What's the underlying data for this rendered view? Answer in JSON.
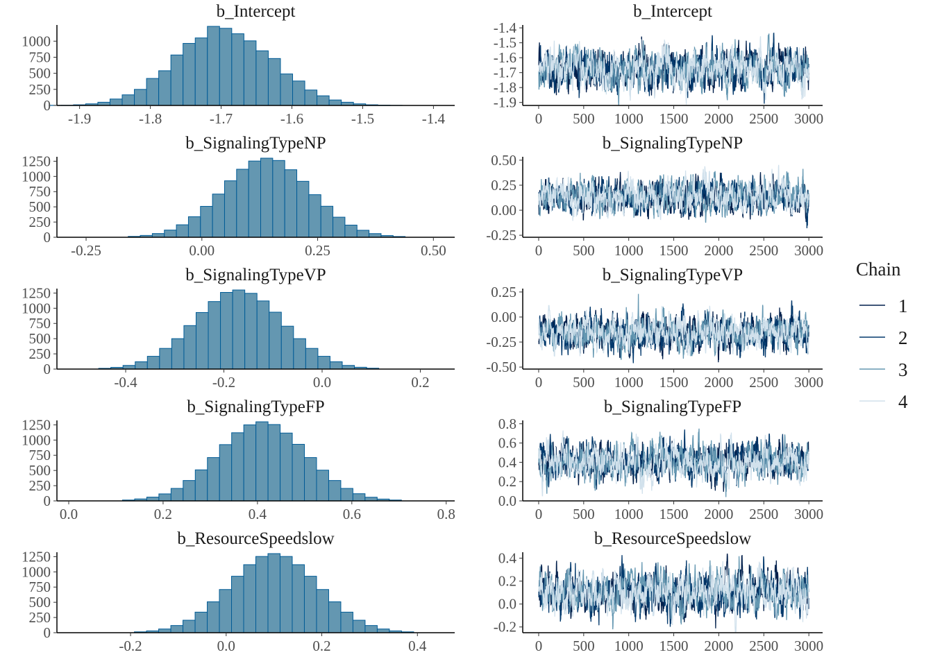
{
  "legend": {
    "title": "Chain",
    "position": "right",
    "entries": [
      {
        "label": "1",
        "color": "#011f4b"
      },
      {
        "label": "2",
        "color": "#03396c"
      },
      {
        "label": "3",
        "color": "#6497b1"
      },
      {
        "label": "4",
        "color": "#d1e1ec"
      }
    ]
  },
  "colors": {
    "hist_fill": "#6497b1",
    "hist_outline": "#005b96",
    "axis": "#000000"
  },
  "chart_data": [
    {
      "type": "bar",
      "kind": "histogram",
      "title": "b_Intercept",
      "xlim": [
        -1.932,
        -1.37
      ],
      "xticks": [
        -1.9,
        -1.8,
        -1.7,
        -1.6,
        -1.5,
        -1.4
      ],
      "xtick_labels": [
        "-1.9",
        "-1.8",
        "-1.7",
        "-1.6",
        "-1.5",
        "-1.4"
      ],
      "ylim": [
        0,
        1230
      ],
      "yticks": [
        0,
        250,
        500,
        750,
        1000
      ],
      "ytick_labels": [
        "0",
        "250",
        "500",
        "750",
        "1000"
      ],
      "bins": {
        "start": -1.943,
        "width": 0.0172,
        "counts": [
          2,
          3,
          10,
          25,
          50,
          100,
          165,
          250,
          420,
          540,
          785,
          965,
          1050,
          1230,
          1200,
          1115,
          1005,
          850,
          730,
          490,
          380,
          240,
          150,
          85,
          50,
          25,
          10,
          5,
          2
        ]
      }
    },
    {
      "type": "line",
      "kind": "trace",
      "title": "b_Intercept",
      "xlim": [
        -177,
        3153
      ],
      "xticks": [
        0,
        500,
        1000,
        1500,
        2000,
        2500,
        3000
      ],
      "xtick_labels": [
        "0",
        "500",
        "1000",
        "1500",
        "2000",
        "2500",
        "3000"
      ],
      "ylim": [
        -1.92,
        -1.39
      ],
      "yticks": [
        -1.9,
        -1.8,
        -1.7,
        -1.6,
        -1.5,
        -1.4
      ],
      "ytick_labels": [
        "-1.9",
        "-1.8",
        "-1.7",
        "-1.6",
        "-1.5",
        "-1.4"
      ],
      "iterations": 3000,
      "mean": -1.68,
      "sd": 0.07
    },
    {
      "type": "bar",
      "kind": "histogram",
      "title": "b_SignalingTypeNP",
      "xlim": [
        -0.313,
        0.546
      ],
      "xticks": [
        -0.25,
        0,
        0.25,
        0.5
      ],
      "xtick_labels": [
        "-0.25",
        "0.00",
        "0.25",
        "0.50"
      ],
      "ylim": [
        0,
        1300
      ],
      "yticks": [
        0,
        250,
        500,
        750,
        1000,
        1250
      ],
      "ytick_labels": [
        "0",
        "250",
        "500",
        "750",
        "1000",
        "1250"
      ],
      "bins": {
        "start": -0.159,
        "width": 0.026,
        "counts": [
          14,
          30,
          61,
          118,
          205,
          338,
          508,
          710,
          928,
          1118,
          1253,
          1300,
          1262,
          1110,
          920,
          700,
          510,
          330,
          200,
          115,
          60,
          28,
          12
        ]
      }
    },
    {
      "type": "line",
      "kind": "trace",
      "title": "b_SignalingTypeNP",
      "xlim": [
        -177,
        3153
      ],
      "xticks": [
        0,
        500,
        1000,
        1500,
        2000,
        2500,
        3000
      ],
      "xtick_labels": [
        "0",
        "500",
        "1000",
        "1500",
        "2000",
        "2500",
        "3000"
      ],
      "ylim": [
        -0.27,
        0.52
      ],
      "yticks": [
        -0.25,
        0,
        0.25,
        0.5
      ],
      "ytick_labels": [
        "-0.25",
        "0.00",
        "0.25",
        "0.50"
      ],
      "iterations": 3000,
      "mean": 0.14,
      "sd": 0.09
    },
    {
      "type": "bar",
      "kind": "histogram",
      "title": "b_SignalingTypeVP",
      "xlim": [
        -0.54,
        0.27
      ],
      "xticks": [
        -0.4,
        -0.2,
        0,
        0.2
      ],
      "xtick_labels": [
        "-0.4",
        "-0.2",
        "0.0",
        "0.2"
      ],
      "ylim": [
        0,
        1300
      ],
      "yticks": [
        0,
        250,
        500,
        750,
        1000,
        1250
      ],
      "ytick_labels": [
        "0",
        "250",
        "500",
        "750",
        "1000",
        "1250"
      ],
      "bins": {
        "start": -0.455,
        "width": 0.0248,
        "counts": [
          12,
          28,
          60,
          120,
          210,
          340,
          500,
          715,
          930,
          1110,
          1260,
          1300,
          1245,
          1120,
          935,
          705,
          500,
          340,
          210,
          120,
          60,
          30,
          14
        ]
      }
    },
    {
      "type": "line",
      "kind": "trace",
      "title": "b_SignalingTypeVP",
      "xlim": [
        -177,
        3153
      ],
      "xticks": [
        0,
        500,
        1000,
        1500,
        2000,
        2500,
        3000
      ],
      "xtick_labels": [
        "0",
        "500",
        "1000",
        "1500",
        "2000",
        "2500",
        "3000"
      ],
      "ylim": [
        -0.52,
        0.27
      ],
      "yticks": [
        -0.5,
        -0.25,
        0,
        0.25
      ],
      "ytick_labels": [
        "-0.50",
        "-0.25",
        "0.00",
        "0.25"
      ],
      "iterations": 3000,
      "mean": -0.16,
      "sd": 0.09
    },
    {
      "type": "bar",
      "kind": "histogram",
      "title": "b_SignalingTypeFP",
      "xlim": [
        -0.025,
        0.818
      ],
      "xticks": [
        0,
        0.2,
        0.4,
        0.6,
        0.8
      ],
      "xtick_labels": [
        "0.0",
        "0.2",
        "0.4",
        "0.6",
        "0.8"
      ],
      "ylim": [
        0,
        1300
      ],
      "yticks": [
        0,
        250,
        500,
        750,
        1000,
        1250
      ],
      "ytick_labels": [
        "0",
        "250",
        "500",
        "750",
        "1000",
        "1250"
      ],
      "bins": {
        "start": 0.114,
        "width": 0.0257,
        "counts": [
          14,
          32,
          62,
          115,
          205,
          335,
          510,
          712,
          925,
          1120,
          1250,
          1300,
          1255,
          1115,
          930,
          712,
          505,
          335,
          205,
          118,
          60,
          30,
          14
        ]
      }
    },
    {
      "type": "line",
      "kind": "trace",
      "title": "b_SignalingTypeFP",
      "xlim": [
        -177,
        3153
      ],
      "xticks": [
        0,
        500,
        1000,
        1500,
        2000,
        2500,
        3000
      ],
      "xtick_labels": [
        "0",
        "500",
        "1000",
        "1500",
        "2000",
        "2500",
        "3000"
      ],
      "ylim": [
        0,
        0.82
      ],
      "yticks": [
        0,
        0.2,
        0.4,
        0.6,
        0.8
      ],
      "ytick_labels": [
        "0.0",
        "0.2",
        "0.4",
        "0.6",
        "0.8"
      ],
      "iterations": 3000,
      "mean": 0.41,
      "sd": 0.1
    },
    {
      "type": "bar",
      "kind": "histogram",
      "title": "b_ResourceSpeedslow",
      "xlim": [
        -0.354,
        0.478
      ],
      "xticks": [
        -0.2,
        0,
        0.2,
        0.4
      ],
      "xtick_labels": [
        "-0.2",
        "0.0",
        "0.2",
        "0.4"
      ],
      "ylim": [
        0,
        1300
      ],
      "yticks": [
        0,
        250,
        500,
        750,
        1000,
        1250
      ],
      "ytick_labels": [
        "0",
        "250",
        "500",
        "750",
        "1000",
        "1250"
      ],
      "bins": {
        "start": -0.192,
        "width": 0.0254,
        "counts": [
          14,
          30,
          61,
          118,
          205,
          338,
          508,
          710,
          928,
          1118,
          1253,
          1300,
          1253,
          1118,
          928,
          710,
          508,
          338,
          205,
          118,
          61,
          30,
          14
        ]
      }
    },
    {
      "type": "line",
      "kind": "trace",
      "title": "b_ResourceSpeedslow",
      "xlim": [
        -177,
        3153
      ],
      "xticks": [
        0,
        500,
        1000,
        1500,
        2000,
        2500,
        3000
      ],
      "xtick_labels": [
        "0",
        "500",
        "1000",
        "1500",
        "2000",
        "2500",
        "3000"
      ],
      "ylim": [
        -0.25,
        0.44
      ],
      "yticks": [
        -0.2,
        0,
        0.2,
        0.4
      ],
      "ytick_labels": [
        "-0.2",
        "0.0",
        "0.2",
        "0.4"
      ],
      "iterations": 3000,
      "mean": 0.1,
      "sd": 0.095
    }
  ]
}
